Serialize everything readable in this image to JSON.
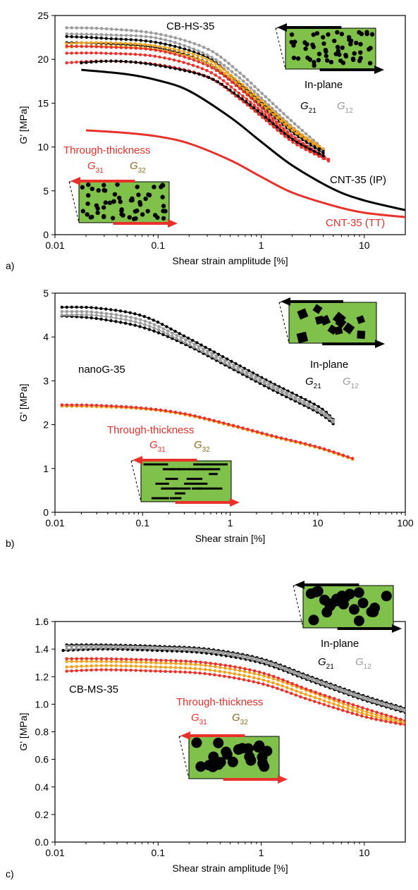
{
  "colors": {
    "g21": "#000000",
    "g12": "#9a9a9a",
    "g31": "#e8312a",
    "g32": "#f0a21c",
    "g32_text": "#8a6d1f",
    "cnt_ip": "#000000",
    "cnt_tt": "#e8312a",
    "inset_fill": "#7fc14a",
    "axis": "#000000"
  },
  "chart_data": [
    {
      "type": "line",
      "panel_label": "a)",
      "xlabel": "Shear strain amplitude [%]",
      "ylabel": "G' [MPa]",
      "xscale": "log",
      "xlim": [
        0.01,
        25
      ],
      "ylim": [
        0,
        25
      ],
      "xticks": [
        0.01,
        0.1,
        1,
        10
      ],
      "xtick_labels": [
        "0.01",
        "0.1",
        "1",
        "10"
      ],
      "yticks": [
        0,
        5,
        10,
        15,
        20,
        25
      ],
      "ytick_labels": [
        "0",
        "5",
        "10",
        "15",
        "20",
        "25"
      ],
      "sample_label": "CB-HS-35",
      "inplane_label": "In-plane",
      "through_label": "Through-thickness",
      "g21_label": "G",
      "g21_sub": "21",
      "g12_label": "G",
      "g12_sub": "12",
      "g31_label": "G",
      "g31_sub": "31",
      "g32_label": "G",
      "g32_sub": "32",
      "inset_particles": "round",
      "series": [
        {
          "group": "G12",
          "color_key": "g12",
          "style": "marker",
          "x": [
            0.013,
            0.03,
            0.1,
            0.3,
            0.6,
            1,
            2,
            3.5
          ],
          "y": [
            23.6,
            23.5,
            22.9,
            21.2,
            18.6,
            16.2,
            12.9,
            10.4
          ]
        },
        {
          "group": "G12",
          "color_key": "g12",
          "style": "marker",
          "x": [
            0.013,
            0.03,
            0.1,
            0.3,
            0.6,
            1,
            2,
            3.5
          ],
          "y": [
            22.9,
            22.8,
            22.4,
            20.5,
            18.0,
            15.6,
            12.3,
            10.0
          ]
        },
        {
          "group": "G21",
          "color_key": "g21",
          "style": "marker",
          "x": [
            0.013,
            0.03,
            0.1,
            0.3,
            0.6,
            1,
            2,
            4
          ],
          "y": [
            22.6,
            22.4,
            21.9,
            20.2,
            17.4,
            15.2,
            12.0,
            9.6
          ]
        },
        {
          "group": "G21",
          "color_key": "g21",
          "style": "marker",
          "x": [
            0.013,
            0.03,
            0.1,
            0.3,
            0.6,
            1,
            2,
            4
          ],
          "y": [
            21.9,
            21.8,
            21.3,
            19.6,
            17.0,
            14.8,
            11.7,
            9.3
          ]
        },
        {
          "group": "G32",
          "color_key": "g32",
          "style": "marker",
          "x": [
            0.013,
            0.03,
            0.1,
            0.3,
            0.6,
            1,
            2,
            4
          ],
          "y": [
            21.8,
            21.9,
            21.5,
            20.0,
            17.5,
            15.3,
            12.2,
            9.8
          ]
        },
        {
          "group": "G32",
          "color_key": "g32",
          "style": "marker",
          "x": [
            0.013,
            0.03,
            0.1,
            0.3,
            0.6,
            1,
            2,
            3.5
          ],
          "y": [
            21.4,
            21.5,
            21.1,
            19.6,
            17.1,
            14.9,
            11.9,
            10.1
          ]
        },
        {
          "group": "G31",
          "color_key": "g31",
          "style": "marker",
          "x": [
            0.013,
            0.03,
            0.1,
            0.3,
            0.6,
            1,
            2,
            4.5
          ],
          "y": [
            21.5,
            21.4,
            21.0,
            19.3,
            16.8,
            14.5,
            11.3,
            8.6
          ]
        },
        {
          "group": "G31",
          "color_key": "g31",
          "style": "marker",
          "x": [
            0.013,
            0.03,
            0.1,
            0.3,
            0.6,
            1,
            2,
            4.5
          ],
          "y": [
            20.7,
            20.7,
            20.3,
            18.7,
            16.2,
            14.1,
            11.0,
            8.4
          ]
        },
        {
          "group": "G31",
          "color_key": "g31",
          "style": "marker",
          "x": [
            0.013,
            0.03,
            0.1,
            0.3,
            0.6,
            1,
            2,
            4
          ],
          "y": [
            19.6,
            19.8,
            19.4,
            18.0,
            15.6,
            13.5,
            10.6,
            8.7
          ]
        },
        {
          "group": "G21",
          "color_key": "g21",
          "style": "marker",
          "x": [
            0.018,
            0.04,
            0.1,
            0.3,
            0.6,
            1,
            2,
            4
          ],
          "y": [
            19.6,
            19.8,
            19.3,
            18.0,
            15.8,
            13.8,
            10.9,
            9.0
          ]
        },
        {
          "group": "CNT-35 (IP)",
          "color_key": "cnt_ip",
          "style": "line",
          "label": "CNT-35 (IP)",
          "x": [
            0.018,
            0.05,
            0.1,
            0.2,
            0.5,
            1,
            2,
            5,
            10,
            25
          ],
          "y": [
            18.8,
            18.3,
            17.6,
            16.4,
            13.4,
            10.6,
            7.9,
            5.2,
            3.9,
            2.8
          ]
        },
        {
          "group": "CNT-35 (TT)",
          "color_key": "cnt_tt",
          "style": "line",
          "label": "CNT-35 (TT)",
          "x": [
            0.02,
            0.05,
            0.1,
            0.2,
            0.5,
            1,
            2,
            5,
            10,
            25
          ],
          "y": [
            11.9,
            11.6,
            11.2,
            10.4,
            8.5,
            6.6,
            4.8,
            3.3,
            2.5,
            2.0
          ]
        }
      ]
    },
    {
      "type": "line",
      "panel_label": "b)",
      "xlabel": "Shear strain [%]",
      "ylabel": "G' [MPa]",
      "xscale": "log",
      "xlim": [
        0.01,
        100
      ],
      "ylim": [
        0,
        5
      ],
      "xticks": [
        0.01,
        0.1,
        1,
        10,
        100
      ],
      "xtick_labels": [
        "0.01",
        "0.1",
        "1",
        "10",
        "100"
      ],
      "yticks": [
        0,
        1,
        2,
        3,
        4,
        5
      ],
      "ytick_labels": [
        "0",
        "1",
        "2",
        "3",
        "4",
        "5"
      ],
      "sample_label": "nanoG-35",
      "inplane_label": "In-plane",
      "through_label": "Through-thickness",
      "g21_label": "G",
      "g21_sub": "21",
      "g12_label": "G",
      "g12_sub": "12",
      "g31_label": "G",
      "g31_sub": "31",
      "g32_label": "G",
      "g32_sub": "32",
      "inset_particles": "platelet",
      "series": [
        {
          "group": "G21",
          "color_key": "g21",
          "style": "marker",
          "x": [
            0.012,
            0.03,
            0.1,
            0.3,
            1,
            3,
            10,
            15
          ],
          "y": [
            4.68,
            4.66,
            4.48,
            4.02,
            3.46,
            2.95,
            2.42,
            2.12
          ]
        },
        {
          "group": "G21",
          "color_key": "g21",
          "style": "marker",
          "x": [
            0.012,
            0.03,
            0.1,
            0.3,
            1,
            3,
            10,
            15
          ],
          "y": [
            4.48,
            4.42,
            4.22,
            3.84,
            3.3,
            2.8,
            2.28,
            2.02
          ]
        },
        {
          "group": "G12",
          "color_key": "g12",
          "style": "marker",
          "x": [
            0.012,
            0.03,
            0.1,
            0.3,
            1,
            3,
            10,
            15
          ],
          "y": [
            4.58,
            4.56,
            4.38,
            3.95,
            3.4,
            2.9,
            2.36,
            2.1
          ]
        },
        {
          "group": "G12",
          "color_key": "g12",
          "style": "marker",
          "x": [
            0.012,
            0.03,
            0.1,
            0.3,
            1,
            3,
            10,
            15
          ],
          "y": [
            4.5,
            4.49,
            4.3,
            3.88,
            3.34,
            2.85,
            2.32,
            2.06
          ]
        },
        {
          "group": "G32",
          "color_key": "g32",
          "style": "marker",
          "x": [
            0.012,
            0.03,
            0.1,
            0.3,
            1,
            3,
            10,
            25
          ],
          "y": [
            2.42,
            2.41,
            2.36,
            2.23,
            1.98,
            1.73,
            1.47,
            1.21
          ]
        },
        {
          "group": "G31",
          "color_key": "g31",
          "style": "marker",
          "x": [
            0.012,
            0.03,
            0.1,
            0.3,
            1,
            3,
            10,
            25
          ],
          "y": [
            2.45,
            2.44,
            2.38,
            2.25,
            2.0,
            1.75,
            1.49,
            1.23
          ]
        }
      ]
    },
    {
      "type": "line",
      "panel_label": "c)",
      "xlabel": "Shear strain amplitude [%]",
      "ylabel": "G' [MPa]",
      "xscale": "log",
      "xlim": [
        0.01,
        25
      ],
      "ylim": [
        0,
        1.6
      ],
      "xticks": [
        0.01,
        0.1,
        1,
        10
      ],
      "xtick_labels": [
        "0.01",
        "0.1",
        "1",
        "10"
      ],
      "yticks": [
        0,
        0.2,
        0.4,
        0.6,
        0.8,
        1.0,
        1.2,
        1.4,
        1.6
      ],
      "ytick_labels": [
        "0.0",
        "0.2",
        "0.4",
        "0.6",
        "0.8",
        "1.0",
        "1.2",
        "1.4",
        "1.6"
      ],
      "sample_label": "CB-MS-35",
      "inplane_label": "In-plane",
      "through_label": "Through-thickness",
      "g21_label": "G",
      "g21_sub": "21",
      "g12_label": "G",
      "g12_sub": "12",
      "g31_label": "G",
      "g31_sub": "31",
      "g32_label": "G",
      "g32_sub": "32",
      "inset_particles": "large-round",
      "series": [
        {
          "group": "G21",
          "color_key": "g21",
          "style": "marker",
          "x": [
            0.013,
            0.03,
            0.1,
            0.3,
            1,
            3,
            10,
            25
          ],
          "y": [
            1.43,
            1.43,
            1.42,
            1.4,
            1.33,
            1.2,
            1.06,
            0.97
          ]
        },
        {
          "group": "G21",
          "color_key": "g21",
          "style": "marker",
          "x": [
            0.012,
            0.03,
            0.1,
            0.3,
            1,
            3,
            10,
            25
          ],
          "y": [
            1.39,
            1.4,
            1.39,
            1.37,
            1.3,
            1.17,
            1.03,
            0.94
          ]
        },
        {
          "group": "G12",
          "color_key": "g12",
          "style": "marker",
          "x": [
            0.013,
            0.03,
            0.1,
            0.3,
            1,
            3,
            10,
            25
          ],
          "y": [
            1.42,
            1.42,
            1.41,
            1.39,
            1.32,
            1.19,
            1.05,
            0.96
          ]
        },
        {
          "group": "G12",
          "color_key": "g12",
          "style": "marker",
          "x": [
            0.013,
            0.03,
            0.1,
            0.3,
            1,
            3,
            10,
            25
          ],
          "y": [
            1.4,
            1.41,
            1.4,
            1.38,
            1.31,
            1.18,
            1.04,
            0.95
          ]
        },
        {
          "group": "G32",
          "color_key": "g32",
          "style": "marker",
          "x": [
            0.013,
            0.03,
            0.1,
            0.3,
            1,
            3,
            10,
            25
          ],
          "y": [
            1.31,
            1.31,
            1.3,
            1.28,
            1.21,
            1.09,
            0.95,
            0.87
          ]
        },
        {
          "group": "G32",
          "color_key": "g32",
          "style": "marker",
          "x": [
            0.013,
            0.03,
            0.1,
            0.3,
            1,
            3,
            10,
            25
          ],
          "y": [
            1.27,
            1.28,
            1.27,
            1.25,
            1.18,
            1.06,
            0.93,
            0.86
          ]
        },
        {
          "group": "G31",
          "color_key": "g31",
          "style": "marker",
          "x": [
            0.013,
            0.03,
            0.1,
            0.3,
            1,
            3,
            10,
            25
          ],
          "y": [
            1.33,
            1.33,
            1.32,
            1.3,
            1.23,
            1.1,
            0.97,
            0.88
          ]
        },
        {
          "group": "G31",
          "color_key": "g31",
          "style": "marker",
          "x": [
            0.013,
            0.03,
            0.1,
            0.3,
            1,
            3,
            10,
            25
          ],
          "y": [
            1.24,
            1.25,
            1.24,
            1.22,
            1.15,
            1.03,
            0.91,
            0.85
          ]
        }
      ]
    }
  ]
}
